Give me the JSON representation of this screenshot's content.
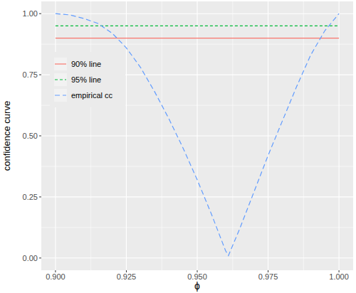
{
  "chart_data": {
    "type": "line",
    "x_label": "ϕ",
    "y_label": "confidence curve",
    "xlim": [
      0.895,
      1.005
    ],
    "ylim": [
      -0.05,
      1.05
    ],
    "xticks": [
      {
        "value": 0.9,
        "label": "0.900"
      },
      {
        "value": 0.925,
        "label": "0.925"
      },
      {
        "value": 0.95,
        "label": "0.950"
      },
      {
        "value": 0.975,
        "label": "0.975"
      },
      {
        "value": 1.0,
        "label": "1.000"
      }
    ],
    "yticks": [
      {
        "value": 0,
        "label": "0.00"
      },
      0.25,
      {
        "value": 0.5,
        "label": "0.50"
      },
      0.75,
      {
        "value": 1,
        "label": "1.00"
      }
    ],
    "grid": true,
    "legend": "top-left",
    "series": [
      {
        "name": "90% line",
        "color": "#F8766D",
        "line_style": "solid",
        "x": [
          0.9,
          1.0
        ],
        "values": [
          0.9,
          0.9
        ]
      },
      {
        "name": "95% line",
        "color": "#00BA38",
        "line_style": "dashed",
        "x": [
          0.9,
          1.0
        ],
        "values": [
          0.95,
          0.95
        ]
      },
      {
        "name": "empirical cc",
        "color": "#619CFF",
        "line_style": "longdash",
        "x": [
          0.9,
          0.905,
          0.91,
          0.915,
          0.92,
          0.925,
          0.93,
          0.935,
          0.94,
          0.945,
          0.95,
          0.955,
          0.96,
          0.961,
          0.965,
          0.97,
          0.975,
          0.98,
          0.985,
          0.99,
          0.995,
          1.0
        ],
        "values": [
          1.0,
          0.995,
          0.98,
          0.96,
          0.92,
          0.86,
          0.78,
          0.68,
          0.57,
          0.45,
          0.32,
          0.18,
          0.03,
          0.01,
          0.12,
          0.27,
          0.42,
          0.56,
          0.7,
          0.83,
          0.93,
          1.0
        ]
      }
    ]
  }
}
